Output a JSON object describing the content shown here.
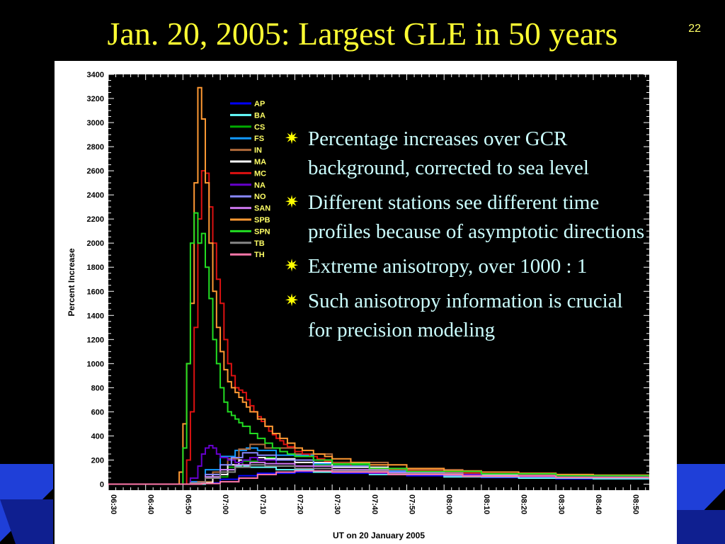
{
  "slide": {
    "title": "Jan. 20, 2005: Largest GLE in 50 years",
    "number": "22",
    "bullets": [
      "Percentage increases over GCR background, corrected to sea level",
      "Different stations see different time profiles because of asymptotic directions",
      "Extreme anisotropy, over 1000 : 1",
      "Such anisotropy information is crucial for precision modeling"
    ]
  },
  "colors": {
    "background": "#000000",
    "title": "#ffff33",
    "bullet_text": "#ccffff",
    "bullet_marker": "#ffff00",
    "stripe": "#1f3fd8"
  },
  "chart_data": {
    "type": "line",
    "title": "",
    "xlabel": "UT on 20 January 2005",
    "ylabel": "Percent Increase",
    "xlim": [
      "06:30",
      "08:55"
    ],
    "ylim": [
      -50,
      3400
    ],
    "x_ticks": [
      "06:30",
      "06:40",
      "06:50",
      "07:00",
      "07:10",
      "07:20",
      "07:30",
      "07:40",
      "07:50",
      "08:00",
      "08:10",
      "08:20",
      "08:30",
      "08:40",
      "08:50"
    ],
    "y_ticks": [
      0,
      200,
      400,
      600,
      800,
      1000,
      1200,
      1400,
      1600,
      1800,
      2000,
      2200,
      2400,
      2600,
      2800,
      3000,
      3200,
      3400
    ],
    "grid": false,
    "legend_position": "top-left",
    "x_unit": "minutes after 06:30 UT",
    "series": [
      {
        "name": "AP",
        "color": "#0000ff",
        "x": [
          0,
          18,
          20,
          25,
          30,
          35,
          40,
          50,
          60,
          80,
          100,
          120,
          145
        ],
        "y": [
          0,
          0,
          0,
          10,
          40,
          70,
          90,
          100,
          90,
          70,
          55,
          45,
          40
        ]
      },
      {
        "name": "BA",
        "color": "#66ffff",
        "x": [
          0,
          20,
          22,
          26,
          30,
          34,
          38,
          45,
          55,
          70,
          90,
          110,
          130,
          145
        ],
        "y": [
          0,
          0,
          0,
          60,
          120,
          150,
          140,
          120,
          100,
          80,
          60,
          50,
          45,
          40
        ]
      },
      {
        "name": "CS",
        "color": "#00aa00",
        "x": [
          0,
          20,
          24,
          28,
          32,
          36,
          40,
          45,
          55,
          70,
          90,
          120,
          145
        ],
        "y": [
          0,
          0,
          20,
          60,
          140,
          190,
          220,
          200,
          160,
          110,
          80,
          60,
          50
        ]
      },
      {
        "name": "FS",
        "color": "#1199ff",
        "x": [
          0,
          20,
          22,
          26,
          30,
          34,
          37,
          40,
          45,
          55,
          70,
          90,
          120,
          145
        ],
        "y": [
          0,
          0,
          20,
          120,
          230,
          280,
          300,
          280,
          240,
          170,
          110,
          80,
          60,
          50
        ]
      },
      {
        "name": "IN",
        "color": "#b06a3a",
        "x": [
          0,
          20,
          24,
          28,
          32,
          35,
          38,
          42,
          50,
          60,
          75,
          95,
          120,
          145
        ],
        "y": [
          0,
          0,
          20,
          100,
          210,
          290,
          330,
          300,
          250,
          180,
          120,
          85,
          65,
          55
        ]
      },
      {
        "name": "MA",
        "color": "#ffffff",
        "x": [
          0,
          21,
          24,
          28,
          32,
          35,
          38,
          42,
          50,
          60,
          75,
          95,
          120,
          145
        ],
        "y": [
          0,
          0,
          10,
          80,
          160,
          200,
          220,
          210,
          180,
          140,
          100,
          75,
          60,
          50
        ]
      },
      {
        "name": "MC",
        "color": "#dd1111",
        "x": [
          0,
          20,
          21,
          22,
          23,
          24,
          25,
          26,
          27,
          28,
          29,
          30,
          31,
          32,
          33,
          34,
          35,
          36,
          37,
          38,
          39,
          40,
          41,
          42,
          43,
          44,
          45,
          46,
          47,
          48,
          50,
          52,
          54,
          56,
          58,
          60,
          65,
          70,
          80,
          90,
          100,
          110,
          120,
          130,
          145
        ],
        "y": [
          0,
          0,
          200,
          600,
          1300,
          2200,
          2600,
          2580,
          2300,
          2000,
          1700,
          1500,
          1200,
          1000,
          900,
          800,
          780,
          760,
          700,
          650,
          600,
          560,
          520,
          480,
          440,
          410,
          380,
          360,
          330,
          310,
          270,
          250,
          230,
          210,
          190,
          175,
          150,
          130,
          110,
          95,
          85,
          78,
          70,
          65,
          60
        ]
      },
      {
        "name": "NA",
        "color": "#6600cc",
        "x": [
          0,
          20,
          22,
          24,
          25,
          26,
          27,
          28,
          29,
          30,
          32,
          34,
          36,
          38,
          40,
          45,
          50,
          55,
          60,
          70,
          80,
          100,
          120,
          145
        ],
        "y": [
          0,
          0,
          50,
          150,
          250,
          300,
          320,
          300,
          250,
          220,
          200,
          180,
          200,
          220,
          200,
          170,
          150,
          130,
          110,
          90,
          80,
          70,
          60,
          50
        ]
      },
      {
        "name": "NO",
        "color": "#8888ff",
        "x": [
          0,
          20,
          22,
          26,
          30,
          33,
          36,
          40,
          45,
          55,
          70,
          90,
          120,
          145
        ],
        "y": [
          0,
          0,
          10,
          80,
          160,
          220,
          260,
          240,
          200,
          150,
          100,
          70,
          55,
          45
        ]
      },
      {
        "name": "SAN",
        "color": "#cc77ee",
        "x": [
          0,
          20,
          22,
          26,
          30,
          34,
          38,
          42,
          50,
          60,
          75,
          95,
          120,
          145
        ],
        "y": [
          0,
          0,
          10,
          60,
          120,
          160,
          180,
          170,
          150,
          120,
          90,
          70,
          55,
          45
        ]
      },
      {
        "name": "SPB",
        "color": "#ff9933",
        "x": [
          0,
          18,
          19,
          20,
          21,
          22,
          23,
          24,
          25,
          26,
          27,
          28,
          29,
          30,
          31,
          32,
          33,
          34,
          35,
          36,
          37,
          38,
          40,
          42,
          44,
          46,
          48,
          50,
          52,
          55,
          58,
          60,
          65,
          70,
          80,
          90,
          100,
          110,
          120,
          130,
          145
        ],
        "y": [
          0,
          0,
          100,
          500,
          1000,
          1500,
          2500,
          3290,
          3030,
          2500,
          2000,
          1600,
          1300,
          1100,
          950,
          850,
          800,
          760,
          720,
          680,
          640,
          600,
          540,
          480,
          420,
          380,
          340,
          300,
          280,
          250,
          230,
          210,
          180,
          160,
          130,
          110,
          100,
          90,
          80,
          75,
          70
        ]
      },
      {
        "name": "SPN",
        "color": "#22dd22",
        "x": [
          0,
          19,
          20,
          21,
          22,
          23,
          24,
          25,
          26,
          27,
          28,
          29,
          30,
          31,
          32,
          33,
          34,
          35,
          36,
          38,
          40,
          42,
          44,
          46,
          48,
          50,
          55,
          60,
          70,
          80,
          100,
          120,
          145
        ],
        "y": [
          0,
          0,
          300,
          1000,
          2000,
          2250,
          2000,
          2080,
          1800,
          1540,
          1200,
          1000,
          800,
          680,
          600,
          570,
          540,
          510,
          480,
          420,
          380,
          340,
          300,
          270,
          250,
          230,
          200,
          170,
          130,
          105,
          85,
          70,
          60
        ]
      },
      {
        "name": "TB",
        "color": "#888888",
        "x": [
          0,
          20,
          22,
          26,
          30,
          34,
          38,
          42,
          50,
          60,
          75,
          95,
          120,
          145
        ],
        "y": [
          0,
          0,
          10,
          50,
          100,
          140,
          160,
          150,
          130,
          110,
          85,
          65,
          55,
          45
        ]
      },
      {
        "name": "TH",
        "color": "#ff77aa",
        "x": [
          0,
          20,
          25,
          30,
          35,
          40,
          45,
          50,
          60,
          75,
          95,
          120,
          145
        ],
        "y": [
          0,
          0,
          5,
          20,
          50,
          80,
          100,
          110,
          100,
          80,
          65,
          55,
          45
        ]
      }
    ]
  }
}
